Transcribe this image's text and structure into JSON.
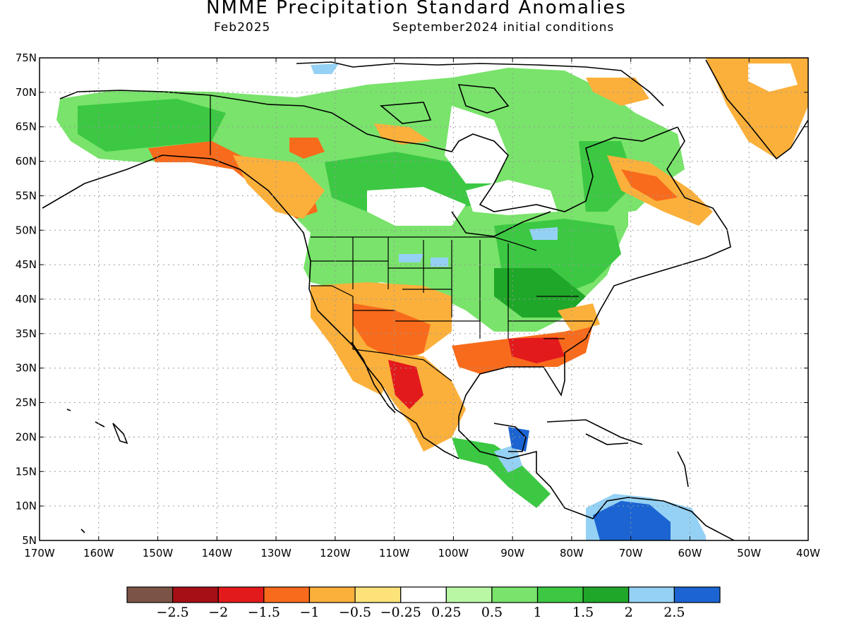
{
  "title": "NMME Precipitation Standard Anomalies",
  "subtitle_left": "Feb2025",
  "subtitle_right": "September2024 initial conditions",
  "map": {
    "lat_ticks": [
      "75N",
      "70N",
      "65N",
      "60N",
      "55N",
      "50N",
      "45N",
      "40N",
      "35N",
      "30N",
      "25N",
      "20N",
      "15N",
      "10N",
      "5N"
    ],
    "lon_ticks": [
      "170W",
      "160W",
      "150W",
      "140W",
      "130W",
      "120W",
      "110W",
      "100W",
      "90W",
      "80W",
      "70W",
      "60W",
      "50W",
      "40W"
    ],
    "lat_range": [
      5,
      75
    ],
    "lon_range": [
      -170,
      -40
    ],
    "grid": "dotted"
  },
  "colorbar": {
    "colors": [
      "#7b5446",
      "#a50f15",
      "#e31a1c",
      "#f86b1c",
      "#fbb03b",
      "#fde27a",
      "#ffffff",
      "#b9f7a5",
      "#79e36b",
      "#3cc843",
      "#1fa729",
      "#95d1f5",
      "#1b64d2"
    ],
    "labels": [
      "−2.5",
      "−2",
      "−1.5",
      "−1",
      "−0.5",
      "−0.25",
      "0.25",
      "0.5",
      "1",
      "1.5",
      "2",
      "2.5"
    ]
  }
}
